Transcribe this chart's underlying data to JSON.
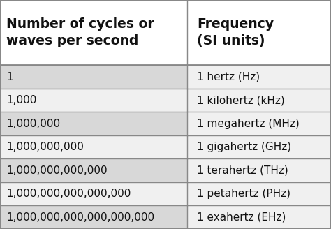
{
  "col1_header": "Number of cycles or\nwaves per second",
  "col2_header": "Frequency\n(SI units)",
  "rows": [
    [
      "1",
      "1 hertz (Hz)"
    ],
    [
      "1,000",
      "1 kilohertz (kHz)"
    ],
    [
      "1,000,000",
      "1 megahertz (MHz)"
    ],
    [
      "1,000,000,000",
      "1 gigahertz (GHz)"
    ],
    [
      "1,000,000,000,000",
      "1 terahertz (THz)"
    ],
    [
      "1,000,000,000,000,000",
      "1 petahertz (PHz)"
    ],
    [
      "1,000,000,000,000,000,000",
      "1 exahertz (EHz)"
    ]
  ],
  "header_bg": "#ffffff",
  "row_bg_odd": "#d8d8d8",
  "row_bg_even": "#f0f0f0",
  "border_color": "#888888",
  "text_color": "#111111",
  "header_fontsize": 13.5,
  "row_fontsize": 11.0,
  "fig_bg": "#ffffff",
  "col_split": 0.565
}
